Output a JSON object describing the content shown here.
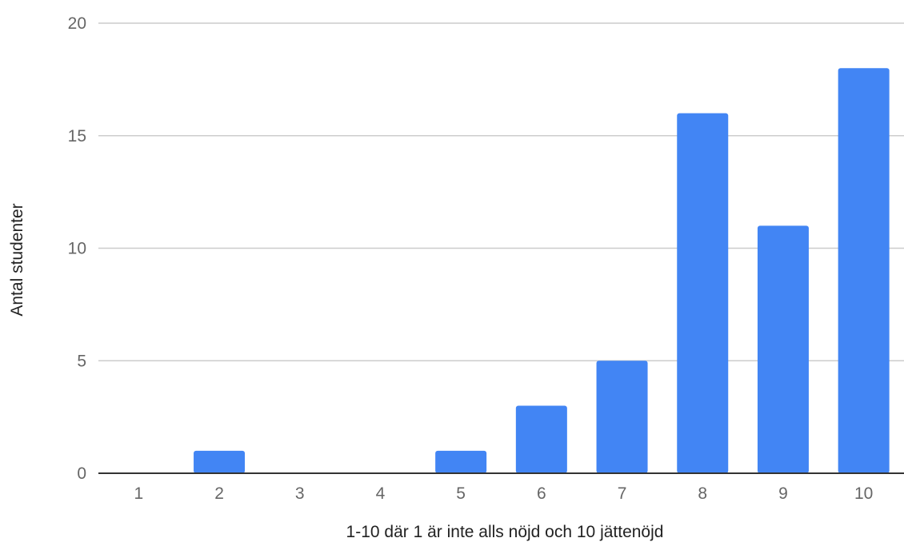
{
  "chart_data": {
    "type": "bar",
    "categories": [
      "1",
      "2",
      "3",
      "4",
      "5",
      "6",
      "7",
      "8",
      "9",
      "10"
    ],
    "values": [
      0,
      1,
      0,
      0,
      1,
      3,
      5,
      16,
      11,
      18
    ],
    "xlabel": "1-10 där 1 är inte alls nöjd och 10 jättenöjd",
    "ylabel": "Antal studenter",
    "ylim": [
      0,
      20
    ],
    "yticks": [
      "0",
      "5",
      "10",
      "15",
      "20"
    ],
    "grid": true,
    "legend": "none",
    "bar_color": "#4285f4"
  }
}
